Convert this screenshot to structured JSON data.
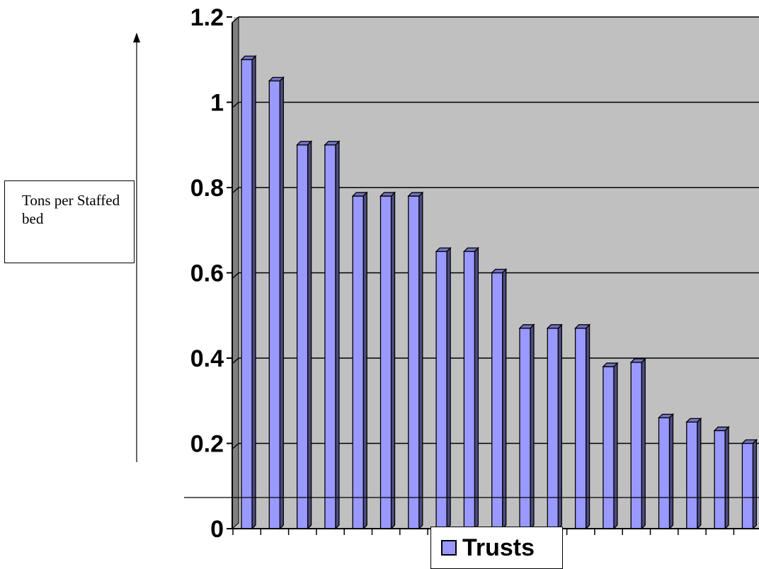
{
  "chart_data": {
    "type": "bar",
    "ylabel": "Tons per Staffed bed",
    "xlabel": "",
    "ylim": [
      0,
      1.2
    ],
    "y_ticks": [
      "0",
      "0.2",
      "0.4",
      "0.6",
      "0.8",
      "1",
      "1.2"
    ],
    "grid": true,
    "legend_position": "bottom",
    "series": [
      {
        "name": "Trusts",
        "color": "#9999ff",
        "values": [
          1.1,
          1.05,
          0.9,
          0.9,
          0.78,
          0.78,
          0.78,
          0.65,
          0.65,
          0.6,
          0.47,
          0.47,
          0.47,
          0.38,
          0.39,
          0.26,
          0.25,
          0.23,
          0.2
        ]
      }
    ],
    "plot_background": "#c0c0c0"
  },
  "legend": {
    "label": "Trusts"
  },
  "ylabel_box": {
    "text": "Tons per Staffed bed"
  }
}
